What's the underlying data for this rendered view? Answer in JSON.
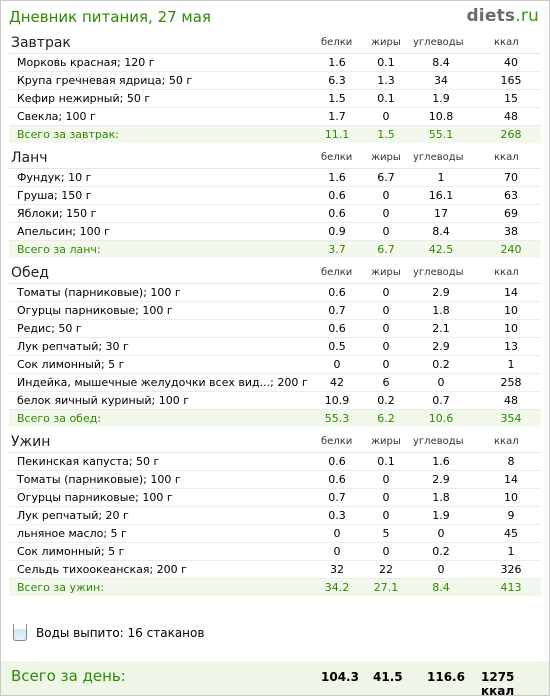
{
  "header": {
    "title": "Дневник питания, 27 мая",
    "logo_main": "diets",
    "logo_suffix": ".ru"
  },
  "columns": {
    "protein": "белки",
    "fat": "жиры",
    "carbs": "углеводы",
    "kcal": "ккал"
  },
  "sections": [
    {
      "title": "Завтрак",
      "items": [
        {
          "name": "Морковь красная; 120 г",
          "p": "1.6",
          "f": "0.1",
          "c": "8.4",
          "k": "40"
        },
        {
          "name": "Крупа гречневая ядрица; 50 г",
          "p": "6.3",
          "f": "1.3",
          "c": "34",
          "k": "165"
        },
        {
          "name": "Кефир нежирный; 50 г",
          "p": "1.5",
          "f": "0.1",
          "c": "1.9",
          "k": "15"
        },
        {
          "name": "Свекла; 100 г",
          "p": "1.7",
          "f": "0",
          "c": "10.8",
          "k": "48"
        }
      ],
      "total": {
        "label": "Всего за завтрак:",
        "p": "11.1",
        "f": "1.5",
        "c": "55.1",
        "k": "268"
      }
    },
    {
      "title": "Ланч",
      "items": [
        {
          "name": "Фундук; 10 г",
          "p": "1.6",
          "f": "6.7",
          "c": "1",
          "k": "70"
        },
        {
          "name": "Груша; 150 г",
          "p": "0.6",
          "f": "0",
          "c": "16.1",
          "k": "63"
        },
        {
          "name": "Яблоки; 150 г",
          "p": "0.6",
          "f": "0",
          "c": "17",
          "k": "69"
        },
        {
          "name": "Апельсин; 100 г",
          "p": "0.9",
          "f": "0",
          "c": "8.4",
          "k": "38"
        }
      ],
      "total": {
        "label": "Всего за ланч:",
        "p": "3.7",
        "f": "6.7",
        "c": "42.5",
        "k": "240"
      }
    },
    {
      "title": "Обед",
      "items": [
        {
          "name": "Томаты (парниковые); 100 г",
          "p": "0.6",
          "f": "0",
          "c": "2.9",
          "k": "14"
        },
        {
          "name": "Огурцы парниковые; 100 г",
          "p": "0.7",
          "f": "0",
          "c": "1.8",
          "k": "10"
        },
        {
          "name": "Редис; 50 г",
          "p": "0.6",
          "f": "0",
          "c": "2.1",
          "k": "10"
        },
        {
          "name": "Лук репчатый; 30 г",
          "p": "0.5",
          "f": "0",
          "c": "2.9",
          "k": "13"
        },
        {
          "name": "Сок лимонный; 5 г",
          "p": "0",
          "f": "0",
          "c": "0.2",
          "k": "1"
        },
        {
          "name": "Индейка, мышечные желудочки всех вид...; 200 г",
          "p": "42",
          "f": "6",
          "c": "0",
          "k": "258"
        },
        {
          "name": "белок яичный куриный; 100 г",
          "p": "10.9",
          "f": "0.2",
          "c": "0.7",
          "k": "48"
        }
      ],
      "total": {
        "label": "Всего за обед:",
        "p": "55.3",
        "f": "6.2",
        "c": "10.6",
        "k": "354"
      }
    },
    {
      "title": "Ужин",
      "items": [
        {
          "name": "Пекинская капуста; 50 г",
          "p": "0.6",
          "f": "0.1",
          "c": "1.6",
          "k": "8"
        },
        {
          "name": "Томаты (парниковые); 100 г",
          "p": "0.6",
          "f": "0",
          "c": "2.9",
          "k": "14"
        },
        {
          "name": "Огурцы парниковые; 100 г",
          "p": "0.7",
          "f": "0",
          "c": "1.8",
          "k": "10"
        },
        {
          "name": "Лук репчатый; 20 г",
          "p": "0.3",
          "f": "0",
          "c": "1.9",
          "k": "9"
        },
        {
          "name": "льняное масло; 5 г",
          "p": "0",
          "f": "5",
          "c": "0",
          "k": "45"
        },
        {
          "name": "Сок лимонный; 5 г",
          "p": "0",
          "f": "0",
          "c": "0.2",
          "k": "1"
        },
        {
          "name": "Сельдь тихоокеанская; 200 г",
          "p": "32",
          "f": "22",
          "c": "0",
          "k": "326"
        }
      ],
      "total": {
        "label": "Всего за ужин:",
        "p": "34.2",
        "f": "27.1",
        "c": "8.4",
        "k": "413"
      }
    }
  ],
  "water": {
    "icon": "glass-icon",
    "text": "Воды выпито: 16 стаканов"
  },
  "day_total": {
    "label": "Всего за день:",
    "p": "104.3",
    "f": "41.5",
    "c": "116.6",
    "k": "1275 ккал"
  },
  "colors": {
    "accent_green": "#2e8a00",
    "total_row_bg": "#f2f8ec",
    "day_total_bg": "#eef6e8"
  }
}
